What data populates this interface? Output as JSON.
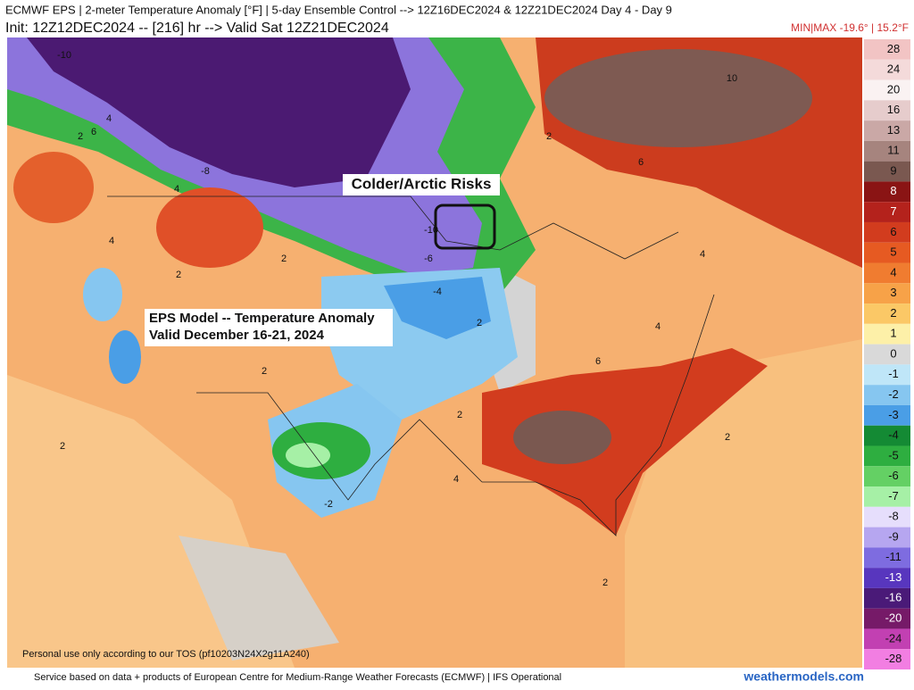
{
  "header": {
    "title": "ECMWF EPS | 2-meter Temperature Anomaly [°F] | 5-day Ensemble Control --> 12Z16DEC2024 & 12Z21DEC2024   Day 4 - Day 9",
    "init": "Init: 12Z12DEC2024 -- [216] hr --> Valid Sat 12Z21DEC2024",
    "minmax": "MIN|MAX -19.6° | 15.2°F"
  },
  "annotations": {
    "risk": "Colder/Arctic Risks",
    "model": "EPS Model -- Temperature Anomaly",
    "valid": "Valid December 16-21, 2024"
  },
  "contour_labels": [
    "-10",
    "-8",
    "4",
    "2",
    "6",
    "4",
    "4",
    "2",
    "2",
    "-10",
    "-6",
    "-4",
    "2",
    "2",
    "10",
    "6",
    "4",
    "4",
    "6",
    "2",
    "2",
    "4",
    "-2",
    "2",
    "2",
    "2"
  ],
  "colorbar": {
    "levels": [
      28,
      24,
      20,
      16,
      13,
      11,
      9,
      8,
      7,
      6,
      5,
      4,
      3,
      2,
      1,
      0,
      -1,
      -2,
      -3,
      -4,
      -5,
      -6,
      -7,
      -8,
      -9,
      -11,
      -13,
      -16,
      -20,
      -24,
      -28
    ],
    "colors": [
      "#f2c4c4",
      "#f4dada",
      "#faf2f2",
      "#e6cccc",
      "#caa8a6",
      "#a6847e",
      "#7a5850",
      "#8a1414",
      "#b4221c",
      "#d23c1e",
      "#e65a22",
      "#f07c30",
      "#f7a248",
      "#fbc866",
      "#fdf0a8",
      "#d9d9d9",
      "#bfe6f8",
      "#86c6f0",
      "#4a9ee6",
      "#148a34",
      "#2eae40",
      "#64d064",
      "#a6f0a6",
      "#e6defc",
      "#b6a6f0",
      "#7e6ce0",
      "#5836be",
      "#4a1a78",
      "#761a68",
      "#c240b2",
      "#f27ee2"
    ]
  },
  "footer": {
    "tos": "Personal use only according to our TOS (pf10203N24X2g11A240)",
    "source": "Service based on data + products of European Centre for Medium-Range Weather Forecasts (ECMWF) | IFS Operational",
    "site": "weathermodels.com"
  }
}
